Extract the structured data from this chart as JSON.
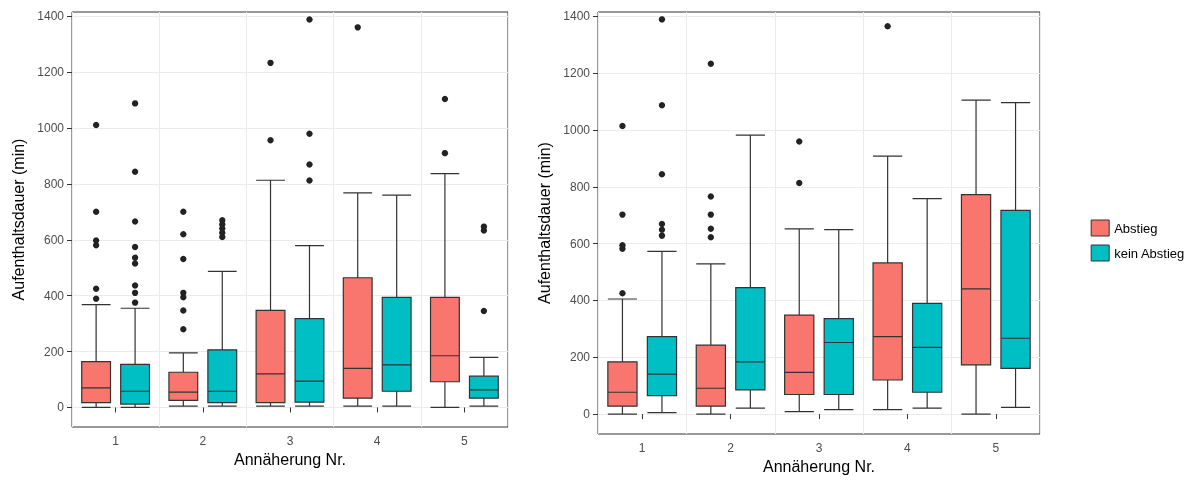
{
  "chart_data": [
    {
      "type": "box",
      "xlabel": "Annäherung Nr.",
      "ylabel": "Aufenthaltsdauer (min)",
      "categories": [
        "1",
        "2",
        "3",
        "4",
        "5"
      ],
      "ylim": [
        -70,
        1415
      ],
      "yticks": [
        0,
        200,
        400,
        600,
        800,
        1000,
        1200,
        1400
      ],
      "grid": true,
      "legend": false,
      "series": [
        {
          "color": "#f8766d",
          "boxes": [
            {
              "low": 0,
              "q1": 17,
              "median": 70,
              "q3": 164,
              "high": 368,
              "outliers": [
                1011,
                700,
                597,
                580,
                425,
                389
              ]
            },
            {
              "low": 5,
              "q1": 25,
              "median": 55,
              "q3": 126,
              "high": 195,
              "outliers": [
                700,
                620,
                531,
                410,
                394,
                347,
                280
              ]
            },
            {
              "low": 5,
              "q1": 17,
              "median": 120,
              "q3": 347,
              "high": 813,
              "outliers": [
                1233,
                956
              ]
            },
            {
              "low": 5,
              "q1": 33,
              "median": 140,
              "q3": 464,
              "high": 768,
              "outliers": [
                1360
              ]
            },
            {
              "low": 0,
              "q1": 92,
              "median": 185,
              "q3": 394,
              "high": 837,
              "outliers": [
                1104,
                910
              ]
            }
          ]
        },
        {
          "color": "#00bfc4",
          "boxes": [
            {
              "low": 0,
              "q1": 12,
              "median": 58,
              "q3": 154,
              "high": 355,
              "outliers": [
                1088,
                843,
                665,
                574,
                536,
                515,
                436,
                410,
                375
              ]
            },
            {
              "low": 5,
              "q1": 17,
              "median": 58,
              "q3": 206,
              "high": 487,
              "outliers": [
                670,
                655,
                640,
                625,
                610
              ]
            },
            {
              "low": 5,
              "q1": 19,
              "median": 94,
              "q3": 318,
              "high": 579,
              "outliers": [
                1388,
                979,
                869,
                812
              ]
            },
            {
              "low": 5,
              "q1": 58,
              "median": 152,
              "q3": 394,
              "high": 760
            },
            {
              "low": 5,
              "q1": 33,
              "median": 63,
              "q3": 112,
              "high": 179,
              "outliers": [
                647,
                633,
                345
              ]
            }
          ]
        }
      ]
    },
    {
      "type": "box",
      "xlabel": "Annäherung Nr.",
      "ylabel": "Aufenthaltsdauer (min)",
      "categories": [
        "1",
        "2",
        "3",
        "4",
        "5"
      ],
      "ylim": [
        -70,
        1415
      ],
      "yticks": [
        0,
        200,
        400,
        600,
        800,
        1000,
        1200,
        1400
      ],
      "grid": true,
      "legend": "right",
      "series": [
        {
          "name": "Abstieg",
          "color": "#f8766d",
          "boxes": [
            {
              "low": 0,
              "q1": 28,
              "median": 77,
              "q3": 184,
              "high": 405,
              "outliers": [
                1014,
                702,
                594,
                582,
                425
              ]
            },
            {
              "low": 0,
              "q1": 28,
              "median": 91,
              "q3": 243,
              "high": 529,
              "outliers": [
                1233,
                766,
                702,
                652,
                622
              ]
            },
            {
              "low": 9,
              "q1": 69,
              "median": 147,
              "q3": 348,
              "high": 652,
              "outliers": [
                959,
                813
              ]
            },
            {
              "low": 16,
              "q1": 120,
              "median": 273,
              "q3": 532,
              "high": 908,
              "outliers": [
                1365
              ]
            },
            {
              "low": 0,
              "q1": 173,
              "median": 441,
              "q3": 772,
              "high": 1105
            }
          ]
        },
        {
          "name": "kein Abstieg",
          "color": "#00bfc4",
          "boxes": [
            {
              "low": 5,
              "q1": 65,
              "median": 141,
              "q3": 273,
              "high": 573,
              "outliers": [
                1389,
                1087,
                844,
                669,
                649,
                628
              ]
            },
            {
              "low": 21,
              "q1": 85,
              "median": 184,
              "q3": 445,
              "high": 982
            },
            {
              "low": 16,
              "q1": 69,
              "median": 252,
              "q3": 336,
              "high": 649
            },
            {
              "low": 21,
              "q1": 77,
              "median": 235,
              "q3": 390,
              "high": 758
            },
            {
              "low": 24,
              "q1": 161,
              "median": 267,
              "q3": 717,
              "high": 1096
            }
          ]
        }
      ]
    }
  ]
}
